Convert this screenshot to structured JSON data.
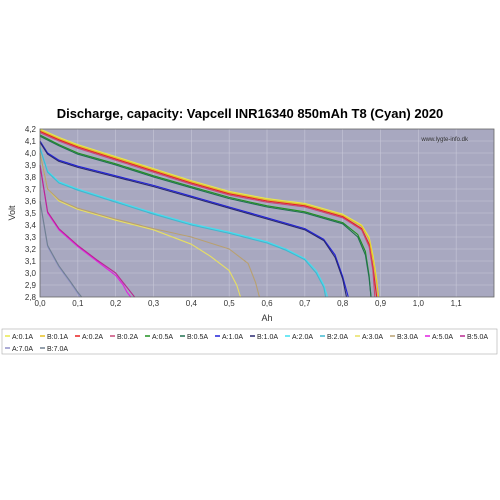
{
  "chart_data": {
    "type": "line",
    "title": "Discharge, capacity: Vapcell INR16340 850mAh T8 (Cyan) 2020",
    "xlabel": "Ah",
    "ylabel": "Volt",
    "watermark": "www.lygte-info.dk",
    "xlim": [
      0,
      1.2
    ],
    "ylim": [
      2.8,
      4.2
    ],
    "x_ticks": [
      "0,0",
      "0,1",
      "0,2",
      "0,3",
      "0,4",
      "0,5",
      "0,6",
      "0,7",
      "0,8",
      "0,9",
      "1,0",
      "1,1"
    ],
    "y_ticks": [
      "2,8",
      "2,9",
      "3,0",
      "3,1",
      "3,2",
      "3,3",
      "3,4",
      "3,5",
      "3,6",
      "3,7",
      "3,8",
      "3,9",
      "4,0",
      "4,1",
      "4,2"
    ],
    "grid": true,
    "legend_position": "bottom",
    "series": [
      {
        "name": "A:0.1A",
        "color": "#e8e84a",
        "x": [
          0,
          0.05,
          0.1,
          0.2,
          0.3,
          0.4,
          0.5,
          0.6,
          0.7,
          0.8,
          0.85,
          0.87,
          0.88,
          0.89,
          0.895
        ],
        "y": [
          4.2,
          4.13,
          4.07,
          3.97,
          3.87,
          3.77,
          3.68,
          3.62,
          3.58,
          3.49,
          3.4,
          3.3,
          3.15,
          2.95,
          2.8
        ]
      },
      {
        "name": "B:0.1A",
        "color": "#e8c020",
        "x": [
          0,
          0.05,
          0.1,
          0.2,
          0.3,
          0.4,
          0.5,
          0.6,
          0.7,
          0.8,
          0.85,
          0.87,
          0.88,
          0.89,
          0.895
        ],
        "y": [
          4.19,
          4.12,
          4.06,
          3.96,
          3.86,
          3.76,
          3.67,
          3.61,
          3.57,
          3.48,
          3.39,
          3.28,
          3.12,
          2.92,
          2.8
        ]
      },
      {
        "name": "A:0.2A",
        "color": "#e82020",
        "x": [
          0,
          0.05,
          0.1,
          0.2,
          0.3,
          0.4,
          0.5,
          0.6,
          0.7,
          0.8,
          0.85,
          0.87,
          0.88,
          0.89
        ],
        "y": [
          4.18,
          4.11,
          4.05,
          3.95,
          3.85,
          3.75,
          3.66,
          3.6,
          3.56,
          3.47,
          3.37,
          3.24,
          3.05,
          2.8
        ]
      },
      {
        "name": "B:0.2A",
        "color": "#c84878",
        "x": [
          0,
          0.05,
          0.1,
          0.2,
          0.3,
          0.4,
          0.5,
          0.6,
          0.7,
          0.8,
          0.85,
          0.87,
          0.88,
          0.885
        ],
        "y": [
          4.17,
          4.1,
          4.04,
          3.94,
          3.84,
          3.74,
          3.65,
          3.59,
          3.55,
          3.46,
          3.36,
          3.22,
          3.02,
          2.8
        ]
      },
      {
        "name": "A:0.5A",
        "color": "#209020",
        "x": [
          0,
          0.05,
          0.1,
          0.2,
          0.3,
          0.4,
          0.5,
          0.6,
          0.7,
          0.8,
          0.84,
          0.86,
          0.87,
          0.875
        ],
        "y": [
          4.15,
          4.07,
          4.0,
          3.91,
          3.81,
          3.72,
          3.63,
          3.56,
          3.51,
          3.42,
          3.32,
          3.18,
          2.98,
          2.8
        ]
      },
      {
        "name": "B:0.5A",
        "color": "#207050",
        "x": [
          0,
          0.05,
          0.1,
          0.2,
          0.3,
          0.4,
          0.5,
          0.6,
          0.7,
          0.8,
          0.84,
          0.86,
          0.87,
          0.875
        ],
        "y": [
          4.14,
          4.06,
          3.99,
          3.9,
          3.8,
          3.71,
          3.62,
          3.55,
          3.5,
          3.41,
          3.3,
          3.15,
          2.96,
          2.8
        ]
      },
      {
        "name": "A:1.0A",
        "color": "#2020d8",
        "x": [
          0,
          0.02,
          0.05,
          0.1,
          0.2,
          0.3,
          0.4,
          0.5,
          0.6,
          0.7,
          0.75,
          0.78,
          0.8,
          0.815
        ],
        "y": [
          4.1,
          4.0,
          3.94,
          3.89,
          3.81,
          3.73,
          3.64,
          3.55,
          3.46,
          3.37,
          3.28,
          3.15,
          2.97,
          2.8
        ]
      },
      {
        "name": "B:1.0A",
        "color": "#282870",
        "x": [
          0,
          0.02,
          0.05,
          0.1,
          0.2,
          0.3,
          0.4,
          0.5,
          0.6,
          0.7,
          0.75,
          0.78,
          0.8,
          0.81
        ],
        "y": [
          4.09,
          3.99,
          3.93,
          3.88,
          3.8,
          3.72,
          3.63,
          3.54,
          3.45,
          3.36,
          3.27,
          3.13,
          2.95,
          2.8
        ]
      },
      {
        "name": "A:2.0A",
        "color": "#40e0f0",
        "x": [
          0,
          0.02,
          0.05,
          0.1,
          0.2,
          0.3,
          0.4,
          0.5,
          0.6,
          0.65,
          0.7,
          0.73,
          0.75,
          0.76
        ],
        "y": [
          4.05,
          3.85,
          3.76,
          3.7,
          3.6,
          3.5,
          3.41,
          3.34,
          3.26,
          3.2,
          3.12,
          3.02,
          2.9,
          2.8
        ]
      },
      {
        "name": "B:2.0A",
        "color": "#40b8d0",
        "x": [
          0,
          0.02,
          0.05,
          0.1,
          0.2,
          0.3,
          0.4,
          0.5,
          0.6,
          0.65,
          0.7,
          0.73,
          0.75,
          0.755
        ],
        "y": [
          4.04,
          3.84,
          3.75,
          3.69,
          3.59,
          3.49,
          3.4,
          3.33,
          3.25,
          3.19,
          3.11,
          3.0,
          2.88,
          2.8
        ]
      },
      {
        "name": "A:3.0A",
        "color": "#e8e060",
        "x": [
          0,
          0.02,
          0.05,
          0.1,
          0.2,
          0.3,
          0.4,
          0.45,
          0.5,
          0.52,
          0.53
        ],
        "y": [
          4.0,
          3.7,
          3.6,
          3.53,
          3.44,
          3.36,
          3.24,
          3.14,
          3.02,
          2.9,
          2.8
        ]
      },
      {
        "name": "B:3.0A",
        "color": "#b8a070",
        "x": [
          0,
          0.02,
          0.05,
          0.1,
          0.2,
          0.3,
          0.4,
          0.5,
          0.55,
          0.57,
          0.58
        ],
        "y": [
          4.0,
          3.7,
          3.61,
          3.54,
          3.45,
          3.37,
          3.3,
          3.2,
          3.08,
          2.92,
          2.8
        ]
      },
      {
        "name": "A:5.0A",
        "color": "#e020e0",
        "x": [
          0,
          0.02,
          0.05,
          0.1,
          0.15,
          0.2,
          0.22,
          0.23,
          0.24
        ],
        "y": [
          3.9,
          3.5,
          3.36,
          3.22,
          3.1,
          2.98,
          2.9,
          2.84,
          2.8
        ]
      },
      {
        "name": "B:5.0A",
        "color": "#b82890",
        "x": [
          0,
          0.02,
          0.05,
          0.1,
          0.15,
          0.2,
          0.22,
          0.24,
          0.25
        ],
        "y": [
          3.9,
          3.51,
          3.37,
          3.23,
          3.11,
          3.0,
          2.92,
          2.84,
          2.8
        ]
      },
      {
        "name": "A:7.0A",
        "color": "#9090c8",
        "x": [
          0,
          0.02,
          0.05,
          0.08,
          0.1,
          0.105
        ],
        "y": [
          3.6,
          3.22,
          3.05,
          2.92,
          2.83,
          2.8
        ]
      },
      {
        "name": "B:7.0A",
        "color": "#708090",
        "x": [
          0,
          0.02,
          0.05,
          0.08,
          0.1,
          0.11
        ],
        "y": [
          3.6,
          3.23,
          3.06,
          2.93,
          2.84,
          2.8
        ]
      }
    ]
  }
}
